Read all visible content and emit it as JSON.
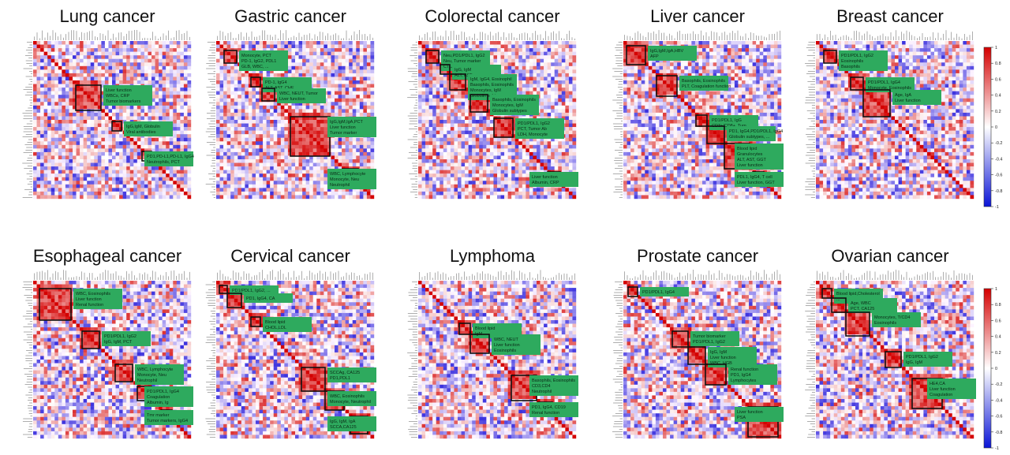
{
  "colorscale": {
    "low": "#0a14d6",
    "mid": "#ffffff",
    "high": "#d40000",
    "range": [
      -1,
      1
    ]
  },
  "colorbar_ticks": [
    "1",
    "0.8",
    "0.6",
    "0.4",
    "0.2",
    "0",
    "-0.2",
    "-0.4",
    "-0.6",
    "-0.8",
    "-1"
  ],
  "chart_data": [
    {
      "type": "heatmap",
      "title": "Lung cancer",
      "clusters": [
        {
          "from": 0.27,
          "to": 0.43,
          "labels": [
            "Liver function",
            "WBCs, CRP",
            "Tumor biomarkers"
          ]
        },
        {
          "from": 0.5,
          "to": 0.56,
          "labels": [
            "IgG,IgM, Globulin",
            "Viral antibodies"
          ]
        },
        {
          "from": 0.69,
          "to": 0.75,
          "labels": [
            "PD1,PD-L1,PD-L1, IgG4",
            "Neutrophils, PCT"
          ]
        }
      ]
    },
    {
      "type": "heatmap",
      "title": "Gastric cancer",
      "clusters": [
        {
          "from": 0.05,
          "to": 0.13,
          "labels": [
            "Monocyte, PCT",
            "PD-1, IgG2, PDL1",
            "GLB, WBC, ..."
          ]
        },
        {
          "from": 0.22,
          "to": 0.28,
          "labels": [
            "PD-1, IgG4",
            "ALT, AST, CHE"
          ]
        },
        {
          "from": 0.29,
          "to": 0.37,
          "labels": [
            "WBC, NEUT, Tumor",
            "Liver function"
          ]
        },
        {
          "from": 0.47,
          "to": 0.72,
          "labels": [
            "IgG,IgM,IgA,PCT",
            "Liver function",
            "Tumor marker"
          ]
        },
        {
          "from": 0.8,
          "to": 0.9,
          "labels": [
            "WBC, Lymphocyte",
            "Monocyte, Neu",
            "Neutrophil"
          ]
        }
      ]
    },
    {
      "type": "heatmap",
      "title": "Colorectal cancer",
      "clusters": [
        {
          "from": 0.05,
          "to": 0.13,
          "labels": [
            "Neu,PD1/PDL1, IgG2",
            "Neu, Tumor marker",
            "CTLA4,PD1,PDL1, IgG4"
          ]
        },
        {
          "from": 0.14,
          "to": 0.2,
          "labels": [
            "IgG, IgM",
            "ALT, AST"
          ]
        },
        {
          "from": 0.2,
          "to": 0.3,
          "labels": [
            "IgM, IgG4, Eosinophil",
            "Basophils, Eosinophils",
            "Monocytes, IgM",
            "Globulin subtypes"
          ]
        },
        {
          "from": 0.33,
          "to": 0.44,
          "labels": [
            "Basophils, Eosinophils",
            "Monocytes, IgM",
            "Globulin subtypes"
          ]
        },
        {
          "from": 0.48,
          "to": 0.6,
          "labels": [
            "PD1/PDL1, IgG2",
            "PCT, Tumor Ab",
            "LDH, Monocyte"
          ]
        },
        {
          "from": 0.82,
          "to": 0.9,
          "labels": [
            "Liver function",
            "Albumin, CRP"
          ]
        }
      ]
    },
    {
      "type": "heatmap",
      "title": "Liver cancer",
      "clusters": [
        {
          "from": 0.02,
          "to": 0.14,
          "labels": [
            "IgG,IgM,IgA,HBV",
            "AFP"
          ]
        },
        {
          "from": 0.21,
          "to": 0.34,
          "labels": [
            "Basophils, Eosinophils",
            "PLT, Coagulation function"
          ]
        },
        {
          "from": 0.46,
          "to": 0.53,
          "labels": [
            "PD1/PDL1, IgG",
            "CD3+/CD8+, Tum"
          ]
        },
        {
          "from": 0.53,
          "to": 0.64,
          "labels": [
            "PD1, IgG4,PD1/PDL1, IgG4",
            "Globulin subtypes, ..."
          ]
        },
        {
          "from": 0.64,
          "to": 0.8,
          "labels": [
            "Blood lipid",
            "Granulocytes",
            "ALT, AST, GGT",
            "Liver function"
          ]
        },
        {
          "from": 0.82,
          "to": 0.89,
          "labels": [
            "PDL1, IgG4, T cell",
            "Liver function, GGT"
          ]
        }
      ]
    },
    {
      "type": "heatmap",
      "title": "Breast cancer",
      "clusters": [
        {
          "from": 0.05,
          "to": 0.13,
          "labels": [
            "PD1/PDL1, IgG2",
            "Eosinophils",
            "Basophils"
          ]
        },
        {
          "from": 0.22,
          "to": 0.3,
          "labels": [
            "PD1/PDL1, IgG4",
            "Monocyte, Eosinophils"
          ]
        },
        {
          "from": 0.3,
          "to": 0.47,
          "labels": [
            "Age, IgA",
            "Liver function"
          ]
        }
      ]
    },
    {
      "type": "heatmap",
      "title": "Esophageal cancer",
      "clusters": [
        {
          "from": 0.04,
          "to": 0.24,
          "labels": [
            "WBC, Eosinophils",
            "Liver function",
            "Renal function"
          ]
        },
        {
          "from": 0.31,
          "to": 0.42,
          "labels": [
            "PD1/PDL1, IgG2",
            "IgG, IgM, PCT"
          ]
        },
        {
          "from": 0.52,
          "to": 0.63,
          "labels": [
            "WBC, Lymphocyte",
            "Monocyte, Neu",
            "Neutrophil"
          ]
        },
        {
          "from": 0.66,
          "to": 0.75,
          "labels": [
            "PD1/PDL1, IgG4",
            "Coagulation",
            "Albumin, Ig"
          ]
        },
        {
          "from": 0.81,
          "to": 0.88,
          "labels": [
            "Tmr marker",
            "Tumor markers, IgG4"
          ]
        }
      ]
    },
    {
      "type": "heatmap",
      "title": "Cervical cancer",
      "clusters": [
        {
          "from": 0.02,
          "to": 0.07,
          "labels": [
            "PD1/PDL1, IgG2, ..."
          ]
        },
        {
          "from": 0.07,
          "to": 0.16,
          "labels": [
            "PD1, IgG4, CA"
          ]
        },
        {
          "from": 0.22,
          "to": 0.28,
          "labels": [
            "Blood lipid",
            "CHOL,LDL"
          ]
        },
        {
          "from": 0.54,
          "to": 0.69,
          "labels": [
            "SCCAg, CA125",
            "PD1,PDL1"
          ]
        },
        {
          "from": 0.69,
          "to": 0.81,
          "labels": [
            "WBC, Eosinophils",
            "Monocyte, Neutrophil"
          ]
        },
        {
          "from": 0.85,
          "to": 0.96,
          "labels": [
            "IgG, IgM, IgA",
            "SCCA,CA125"
          ]
        }
      ]
    },
    {
      "type": "heatmap",
      "title": "Lymphoma",
      "clusters": [
        {
          "from": 0.26,
          "to": 0.33,
          "labels": [
            "Blood lipid",
            "IgM"
          ]
        },
        {
          "from": 0.33,
          "to": 0.45,
          "labels": [
            "WBC, NEUT",
            "Liver function",
            "Eosinophils"
          ]
        },
        {
          "from": 0.59,
          "to": 0.75,
          "labels": [
            "Basophils, Eosinophils",
            "CD3,CD4",
            "Neutrophil"
          ]
        },
        {
          "from": 0.76,
          "to": 0.85,
          "labels": [
            "PD1, IgG4, CD19",
            "Renal function"
          ]
        }
      ]
    },
    {
      "type": "heatmap",
      "title": "Prostate cancer",
      "clusters": [
        {
          "from": 0.03,
          "to": 0.09,
          "labels": [
            "PD1/PDL1, IgG4"
          ]
        },
        {
          "from": 0.31,
          "to": 0.41,
          "labels": [
            "Tumor biomarker",
            "PD1/PDL1, IgG2"
          ]
        },
        {
          "from": 0.41,
          "to": 0.52,
          "labels": [
            "IgG, IgM",
            "Liver function",
            "WBC, HGB"
          ]
        },
        {
          "from": 0.52,
          "to": 0.65,
          "labels": [
            "Renal function",
            "PD1, IgG4",
            "Lymphocytes"
          ]
        },
        {
          "from": 0.79,
          "to": 0.98,
          "labels": [
            "Liver function",
            "PSA"
          ]
        }
      ]
    },
    {
      "type": "heatmap",
      "title": "Ovarian cancer",
      "clusters": [
        {
          "from": 0.04,
          "to": 0.1,
          "labels": [
            "Blood lipid,Cholesterol",
            "..."
          ]
        },
        {
          "from": 0.1,
          "to": 0.19,
          "labels": [
            "Age, WBC",
            "PCT, CA125"
          ]
        },
        {
          "from": 0.19,
          "to": 0.34,
          "labels": [
            "Monocytes, T/CD4",
            "Eosinophils"
          ]
        },
        {
          "from": 0.44,
          "to": 0.54,
          "labels": [
            "PD1/PDL1, IgG2",
            "IgG, IgM"
          ]
        },
        {
          "from": 0.61,
          "to": 0.8,
          "labels": [
            "HE4,CA",
            "Liver function",
            "Coagulation"
          ]
        }
      ]
    }
  ]
}
